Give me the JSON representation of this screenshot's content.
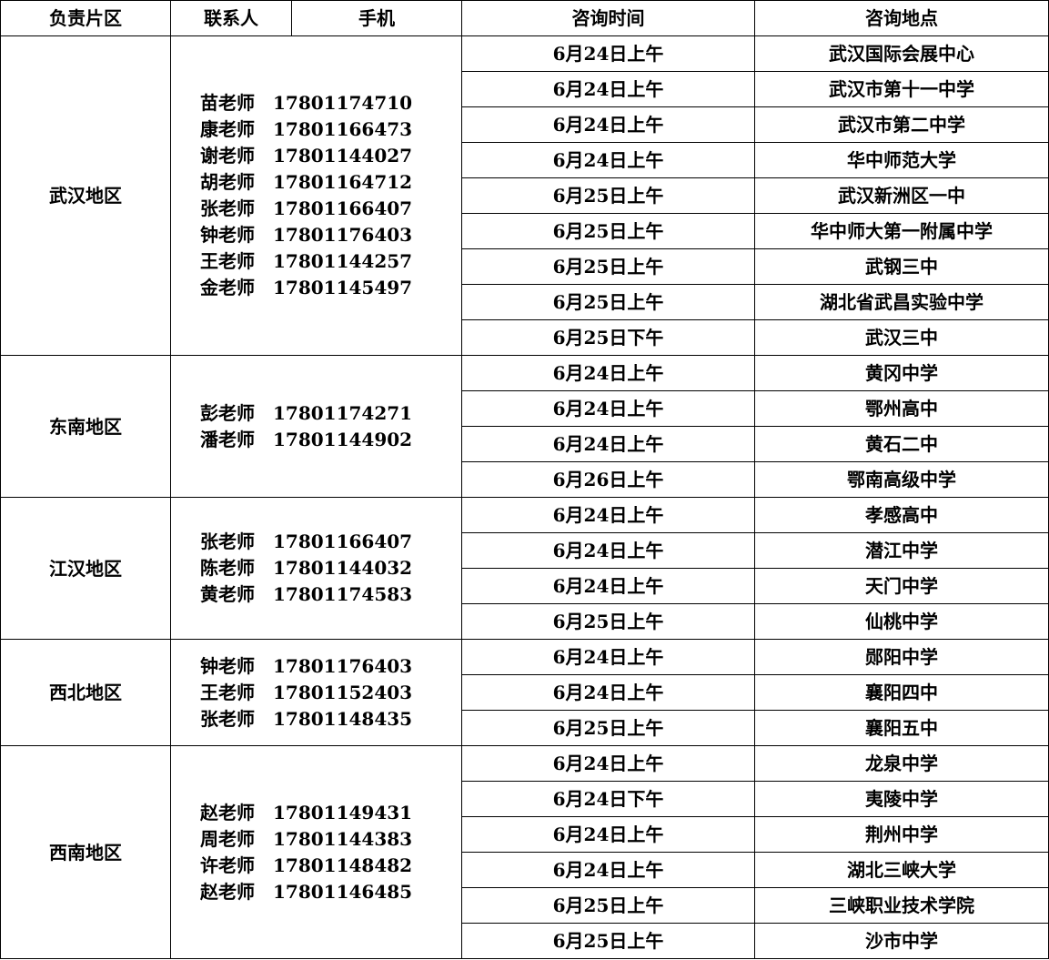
{
  "headers": [
    "负责片区",
    "联系人",
    "手机",
    "咨询时间",
    "咨询地点"
  ],
  "regions": [
    {
      "name": "武汉地区",
      "contacts": [
        {
          "name": "苗老师",
          "phone": "17801174710"
        },
        {
          "name": "康老师",
          "phone": "17801166473"
        },
        {
          "name": "谢老师",
          "phone": "17801144027"
        },
        {
          "name": "胡老师",
          "phone": "17801164712"
        },
        {
          "name": "张老师",
          "phone": "17801166407"
        },
        {
          "name": "钟老师",
          "phone": "17801176403"
        },
        {
          "name": "王老师",
          "phone": "17801144257"
        },
        {
          "name": "金老师",
          "phone": "17801145497"
        }
      ],
      "sessions": [
        {
          "time": "6月24日上午",
          "place": "武汉国际会展中心"
        },
        {
          "time": "6月24日上午",
          "place": "武汉市第十一中学"
        },
        {
          "time": "6月24日上午",
          "place": "武汉市第二中学"
        },
        {
          "time": "6月24日上午",
          "place": "华中师范大学"
        },
        {
          "time": "6月25日上午",
          "place": "武汉新洲区一中"
        },
        {
          "time": "6月25日上午",
          "place": "华中师大第一附属中学"
        },
        {
          "time": "6月25日上午",
          "place": "武钢三中"
        },
        {
          "time": "6月25日上午",
          "place": "湖北省武昌实验中学"
        },
        {
          "time": "6月25日下午",
          "place": "武汉三中"
        }
      ]
    },
    {
      "name": "东南地区",
      "contacts": [
        {
          "name": "彭老师",
          "phone": "17801174271"
        },
        {
          "name": "潘老师",
          "phone": "17801144902"
        }
      ],
      "sessions": [
        {
          "time": "6月24日上午",
          "place": "黄冈中学"
        },
        {
          "time": "6月24日上午",
          "place": "鄂州高中"
        },
        {
          "time": "6月24日上午",
          "place": "黄石二中"
        },
        {
          "time": "6月26日上午",
          "place": "鄂南高级中学"
        }
      ]
    },
    {
      "name": "江汉地区",
      "contacts": [
        {
          "name": "张老师",
          "phone": "17801166407"
        },
        {
          "name": "陈老师",
          "phone": "17801144032"
        },
        {
          "name": "黄老师",
          "phone": "17801174583"
        }
      ],
      "sessions": [
        {
          "time": "6月24日上午",
          "place": "孝感高中"
        },
        {
          "time": "6月24日上午",
          "place": "潜江中学"
        },
        {
          "time": "6月24日上午",
          "place": "天门中学"
        },
        {
          "time": "6月25日上午",
          "place": "仙桃中学"
        }
      ]
    },
    {
      "name": "西北地区",
      "contacts": [
        {
          "name": "钟老师",
          "phone": "17801176403"
        },
        {
          "name": "王老师",
          "phone": "17801152403"
        },
        {
          "name": "张老师",
          "phone": "17801148435"
        }
      ],
      "sessions": [
        {
          "time": "6月24日上午",
          "place": "郧阳中学"
        },
        {
          "time": "6月24日上午",
          "place": "襄阳四中"
        },
        {
          "time": "6月25日上午",
          "place": "襄阳五中"
        }
      ]
    },
    {
      "name": "西南地区",
      "contacts": [
        {
          "name": "赵老师",
          "phone": "17801149431"
        },
        {
          "name": "周老师",
          "phone": "17801144383"
        },
        {
          "name": "许老师",
          "phone": "17801148482"
        },
        {
          "name": "赵老师",
          "phone": "17801146485"
        }
      ],
      "sessions": [
        {
          "time": "6月24日上午",
          "place": "龙泉中学"
        },
        {
          "time": "6月24日下午",
          "place": "夷陵中学"
        },
        {
          "time": "6月24日上午",
          "place": "荆州中学"
        },
        {
          "time": "6月24日上午",
          "place": "湖北三峡大学"
        },
        {
          "time": "6月25日上午",
          "place": "三峡职业技术学院"
        },
        {
          "time": "6月25日上午",
          "place": "沙市中学"
        }
      ]
    }
  ]
}
